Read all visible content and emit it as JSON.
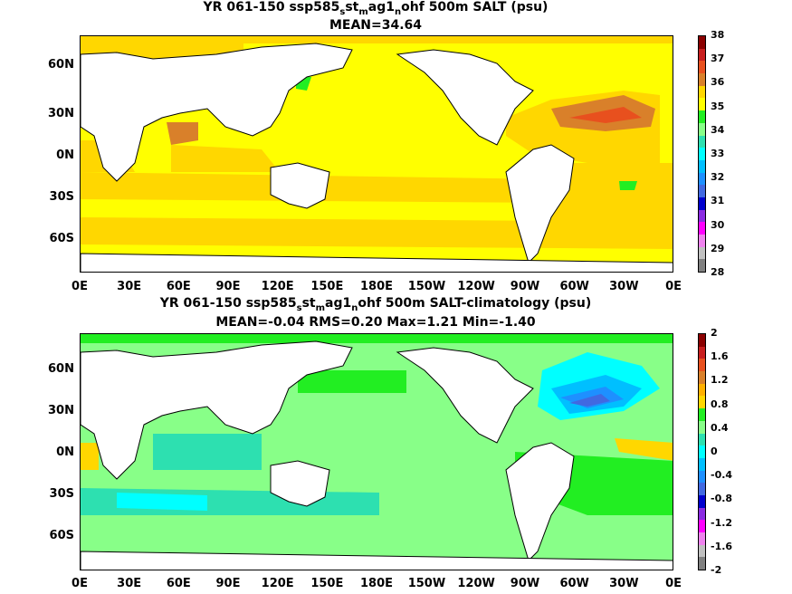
{
  "top": {
    "title_prefix": "YR 061-150 ssp585",
    "title_parts": [
      "s",
      "st",
      "m",
      "ag1",
      "n",
      "ohf 500m SALT (psu)"
    ],
    "subtitle": "MEAN=34.64",
    "colorbar_labels": [
      "38",
      "37",
      "36",
      "35",
      "34",
      "33",
      "32",
      "31",
      "30",
      "29",
      "28"
    ],
    "colorbar_colors": [
      "#8b0000",
      "#c81e1e",
      "#e8501e",
      "#d9802a",
      "#ffd700",
      "#ffff00",
      "#22ee22",
      "#88ff88",
      "#2de0b0",
      "#00ffff",
      "#00bfff",
      "#1e90ff",
      "#4169e1",
      "#0000cd",
      "#8a2be2",
      "#ff00ff",
      "#ee82ee",
      "#c0c0c0",
      "#808080"
    ]
  },
  "bottom": {
    "title_prefix": "YR 061-150 ssp585",
    "title_parts": [
      "s",
      "st",
      "m",
      "ag1",
      "n",
      "ohf 500m SALT-climatology (psu)"
    ],
    "subtitle": "MEAN=-0.04   RMS=0.20   Max=1.21   Min=-1.40",
    "colorbar_labels": [
      "2",
      "1.6",
      "1.2",
      "0.8",
      "0.4",
      "0",
      "-0.4",
      "-0.8",
      "-1.2",
      "-1.6",
      "-2"
    ],
    "colorbar_colors": [
      "#8b0000",
      "#c81e1e",
      "#e8501e",
      "#d9802a",
      "#ffb000",
      "#ffd700",
      "#22ee22",
      "#88ff88",
      "#2de0b0",
      "#00ffff",
      "#00bfff",
      "#1e90ff",
      "#4169e1",
      "#0000cd",
      "#8a2be2",
      "#ff00ff",
      "#ee82ee",
      "#c0c0c0",
      "#808080"
    ]
  },
  "lat_labels": [
    "60N",
    "30N",
    "0N",
    "30S",
    "60S"
  ],
  "lon_labels": [
    "0E",
    "30E",
    "60E",
    "90E",
    "120E",
    "150E",
    "180E",
    "150W",
    "120W",
    "90W",
    "60W",
    "30W",
    "0E"
  ],
  "colors": {
    "land": "#ffffff",
    "coast": "#000000"
  }
}
